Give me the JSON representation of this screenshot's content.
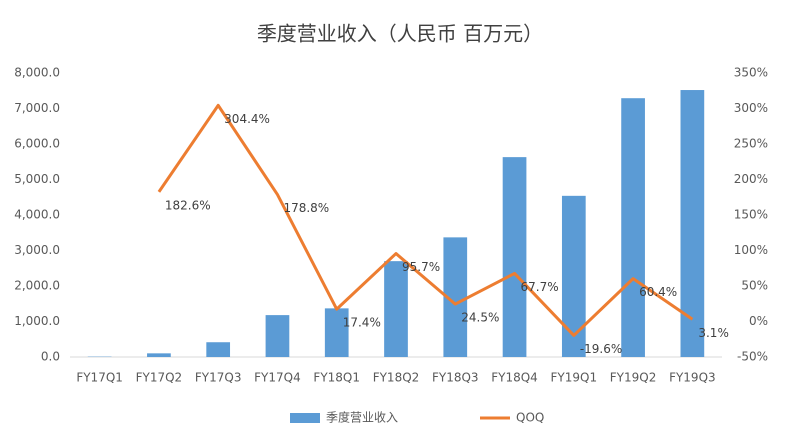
{
  "chart_data": {
    "type": "bar-line",
    "title": "季度营业收入（人民币 百万元）",
    "categories": [
      "FY17Q1",
      "FY17Q2",
      "FY17Q3",
      "FY17Q4",
      "FY18Q1",
      "FY18Q2",
      "FY18Q3",
      "FY18Q4",
      "FY19Q1",
      "FY19Q2",
      "FY19Q3"
    ],
    "series": [
      {
        "name": "季度营业收入",
        "color": "#5b9bd5",
        "type": "bar",
        "values": [
          10,
          103,
          416,
          1180,
          1370,
          2700,
          3370,
          5630,
          4540,
          7290,
          7520
        ]
      },
      {
        "name": "QOQ",
        "color": "#ed7d31",
        "type": "line",
        "axis": "y2",
        "values": [
          null,
          182.6,
          304.4,
          178.8,
          17.4,
          95.7,
          24.5,
          67.7,
          -19.6,
          60.4,
          3.1
        ],
        "value_labels": [
          null,
          "182.6%",
          "304.4%",
          "178.8%",
          "17.4%",
          "95.7%",
          "24.5%",
          "67.7%",
          "-19.6%",
          "60.4%",
          "3.1%"
        ]
      }
    ],
    "ylim": [
      0,
      8000
    ],
    "yticks": [
      {
        "value": 0,
        "label": "0.0"
      },
      {
        "value": 1000,
        "label": "1,000.0"
      },
      {
        "value": 2000,
        "label": "2,000.0"
      },
      {
        "value": 3000,
        "label": "3,000.0"
      },
      {
        "value": 4000,
        "label": "4,000.0"
      },
      {
        "value": 5000,
        "label": "5,000.0"
      },
      {
        "value": 6000,
        "label": "6,000.0"
      },
      {
        "value": 7000,
        "label": "7,000.0"
      },
      {
        "value": 8000,
        "label": "8,000.0"
      }
    ],
    "y2lim": [
      -50,
      350
    ],
    "y2ticks": [
      {
        "value": -50,
        "label": "-50%"
      },
      {
        "value": 0,
        "label": "0%"
      },
      {
        "value": 50,
        "label": "50%"
      },
      {
        "value": 100,
        "label": "100%"
      },
      {
        "value": 150,
        "label": "150%"
      },
      {
        "value": 200,
        "label": "200%"
      },
      {
        "value": 250,
        "label": "250%"
      },
      {
        "value": 300,
        "label": "300%"
      },
      {
        "value": 350,
        "label": "350%"
      }
    ],
    "grid": false,
    "legend": "bottom"
  }
}
